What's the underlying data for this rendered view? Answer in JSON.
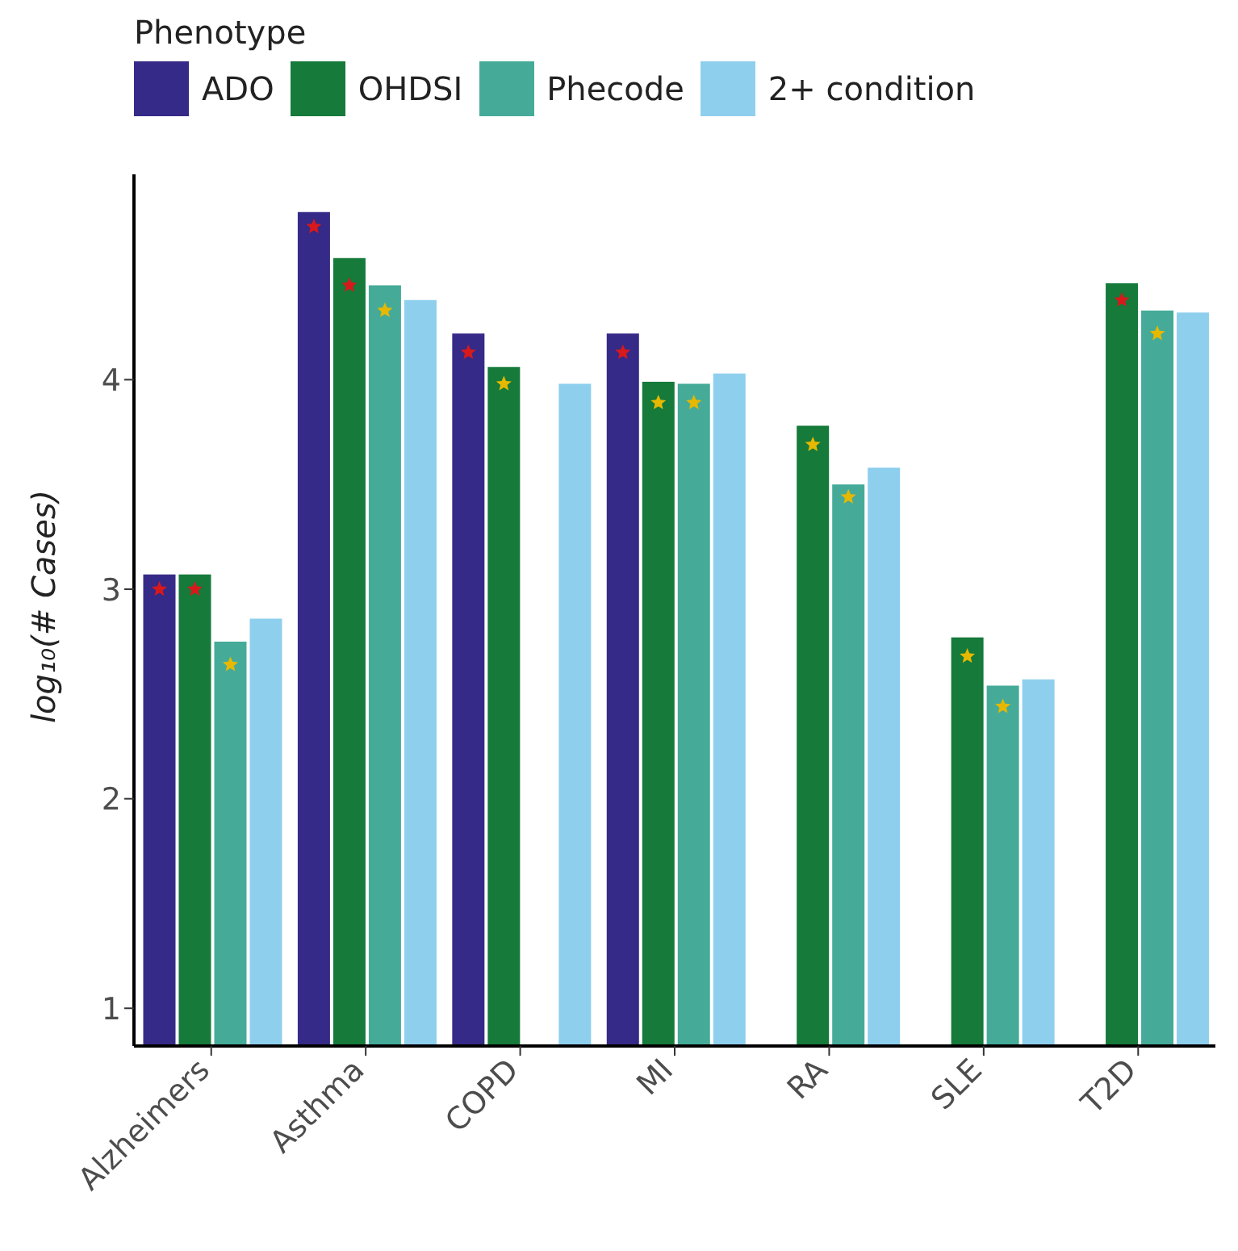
{
  "chart_data": {
    "type": "bar",
    "ylabel": "log₁₀(# Cases)",
    "legend_title": "Phenotype",
    "legend": "top left",
    "marker": "star",
    "categories": [
      "Alzheimers",
      "Asthma",
      "COPD",
      "MI",
      "RA",
      "SLE",
      "T2D"
    ],
    "ylim": [
      0.82,
      4.98
    ],
    "yticks": [
      1,
      2,
      3,
      4
    ],
    "series": [
      {
        "name": "ADO",
        "color": "#352a87",
        "values": [
          3.07,
          4.8,
          4.22,
          4.22,
          null,
          null,
          null
        ]
      },
      {
        "name": "OHDSI",
        "color": "#157a3a",
        "values": [
          3.07,
          4.58,
          4.06,
          3.99,
          3.78,
          2.77,
          4.46
        ]
      },
      {
        "name": "Phecode",
        "color": "#45ab98",
        "values": [
          2.75,
          4.45,
          null,
          3.98,
          3.5,
          2.54,
          4.33
        ]
      },
      {
        "name": "2+ condition",
        "color": "#8ecfee",
        "values": [
          2.86,
          4.38,
          3.98,
          4.03,
          3.58,
          2.57,
          4.32
        ]
      },
      {
        "type": "scatter",
        "values": [
          3.0,
          4.73,
          4.13,
          4.13,
          null,
          null,
          null
        ],
        "colors": [
          "#d7191c",
          "#d7191c",
          "#d7191c",
          "#d7191c",
          null,
          null,
          null
        ]
      },
      {
        "type": "scatter",
        "values": [
          3.0,
          4.45,
          3.98,
          3.89,
          3.69,
          2.68,
          4.38
        ],
        "colors": [
          "#d7191c",
          "#d7191c",
          "#e6b800",
          "#e6b800",
          "#e6b800",
          "#e6b800",
          "#d7191c"
        ]
      },
      {
        "type": "scatter",
        "values": [
          2.64,
          4.33,
          null,
          3.89,
          3.44,
          2.44,
          4.22
        ],
        "colors": [
          "#e6b800",
          "#e6b800",
          null,
          "#e6b800",
          "#e6b800",
          "#e6b800",
          "#e6b800"
        ]
      }
    ]
  }
}
